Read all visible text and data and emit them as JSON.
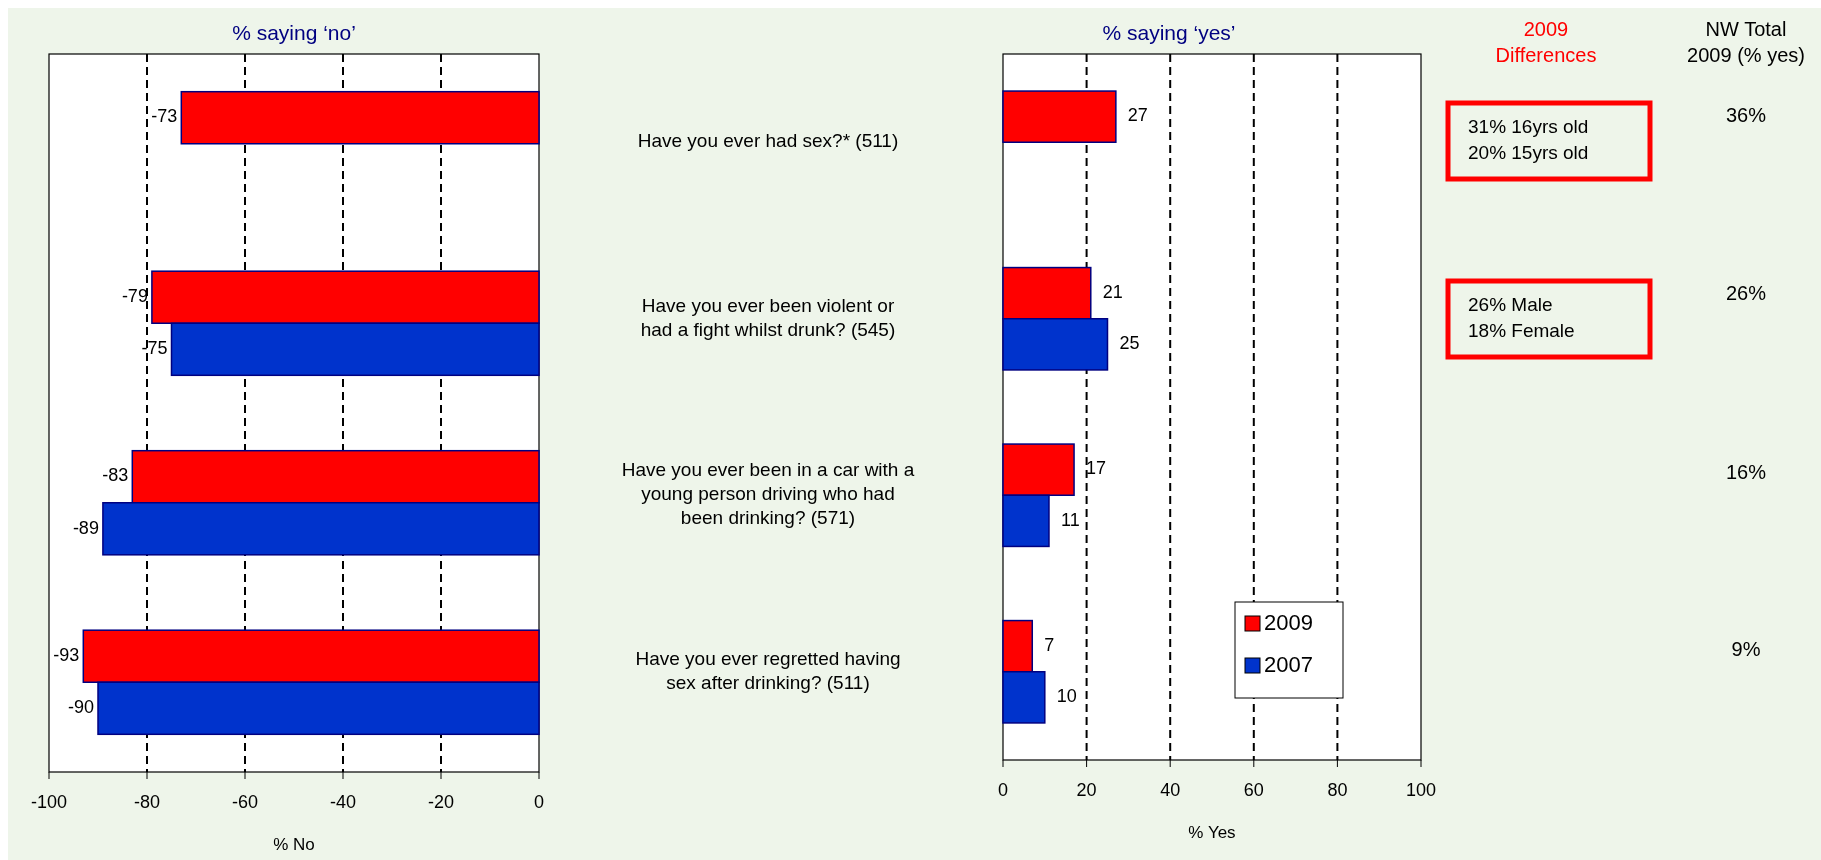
{
  "chart_data": [
    {
      "type": "bar",
      "orientation": "horizontal",
      "title": "% saying ‘no’",
      "xlabel": "% No",
      "categories": [
        null,
        null,
        null,
        null
      ],
      "series": [
        {
          "color": "#ff0000",
          "values": [
            -73,
            -79,
            -83,
            -93
          ]
        },
        {
          "color": "#0033cc",
          "values": [
            null,
            -75,
            -89,
            -90
          ]
        }
      ],
      "xlim": [
        -100,
        0
      ],
      "xticks": [
        -100,
        -80,
        -60,
        -40,
        -20,
        0
      ],
      "grid": "x",
      "data_labels": true
    },
    {
      "type": "bar",
      "orientation": "horizontal",
      "title": "%  saying ‘yes’",
      "xlabel": "% Yes",
      "categories": [
        "Have you ever had sex?* (511)",
        "Have you ever been violent or\nhad a fight whilst drunk? (545)",
        "Have you ever been in a car with a\nyoung person driving who had\nbeen drinking? (571)",
        "Have you ever regretted having\nsex after drinking? (511)"
      ],
      "series": [
        {
          "name": "2009",
          "color": "#ff0000",
          "values": [
            27,
            21,
            17,
            7
          ]
        },
        {
          "name": "2007",
          "color": "#0033cc",
          "values": [
            null,
            25,
            11,
            10
          ]
        }
      ],
      "xlim": [
        0,
        100
      ],
      "xticks": [
        0,
        20,
        40,
        60,
        80,
        100
      ],
      "grid": "x",
      "data_labels": true,
      "legend": "bottom right"
    },
    {
      "type": "other",
      "title": "2009\nDifferences",
      "color": "#ff0000",
      "annotations": [
        "31% 16yrs old\n20% 15yrs old",
        "26% Male\n18% Female"
      ]
    },
    {
      "type": "other",
      "title": "NW Total\n2009 (% yes)",
      "annotations": [
        "36%",
        "26%",
        "16%",
        "9%"
      ]
    }
  ]
}
